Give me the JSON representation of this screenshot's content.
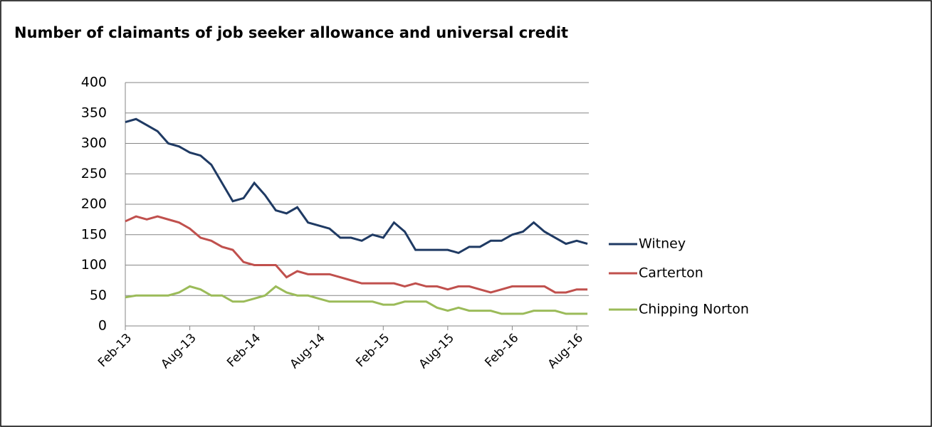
{
  "chart_data": {
    "type": "line",
    "title": "Number of claimants of job seeker allowance and universal credit",
    "categories": [
      "Feb-13",
      null,
      null,
      null,
      null,
      null,
      "Aug-13",
      null,
      null,
      null,
      null,
      null,
      "Feb-14",
      null,
      null,
      null,
      null,
      null,
      "Aug-14",
      null,
      null,
      null,
      null,
      null,
      "Feb-15",
      null,
      null,
      null,
      null,
      null,
      "Aug-15",
      null,
      null,
      null,
      null,
      null,
      "Feb-16",
      null,
      null,
      null,
      null,
      null,
      "Aug-16",
      null
    ],
    "series": [
      {
        "name": "Witney",
        "color": "#1f3a63",
        "values": [
          335,
          340,
          330,
          320,
          300,
          295,
          285,
          280,
          265,
          235,
          205,
          210,
          235,
          215,
          190,
          185,
          195,
          170,
          165,
          160,
          145,
          145,
          140,
          150,
          145,
          170,
          155,
          125,
          125,
          125,
          125,
          120,
          130,
          130,
          140,
          140,
          150,
          155,
          170,
          155,
          145,
          135,
          140,
          135
        ]
      },
      {
        "name": "Carterton",
        "color": "#c0504d",
        "values": [
          172,
          180,
          175,
          180,
          175,
          170,
          160,
          145,
          140,
          130,
          125,
          105,
          100,
          100,
          100,
          80,
          90,
          85,
          85,
          85,
          80,
          75,
          70,
          70,
          70,
          70,
          65,
          70,
          65,
          65,
          60,
          65,
          65,
          60,
          55,
          60,
          65,
          65,
          65,
          65,
          55,
          55,
          60,
          60
        ]
      },
      {
        "name": "Chipping Norton",
        "color": "#9bbb59",
        "values": [
          47,
          50,
          50,
          50,
          50,
          55,
          65,
          60,
          50,
          50,
          40,
          40,
          45,
          50,
          65,
          55,
          50,
          50,
          45,
          40,
          40,
          40,
          40,
          40,
          35,
          35,
          40,
          40,
          40,
          30,
          25,
          30,
          25,
          25,
          25,
          20,
          20,
          20,
          25,
          25,
          25,
          20,
          20,
          20
        ]
      }
    ],
    "ylim": [
      0,
      400
    ],
    "yticks": [
      0,
      50,
      100,
      150,
      200,
      250,
      300,
      350,
      400
    ],
    "grid": true,
    "legend": "right"
  }
}
